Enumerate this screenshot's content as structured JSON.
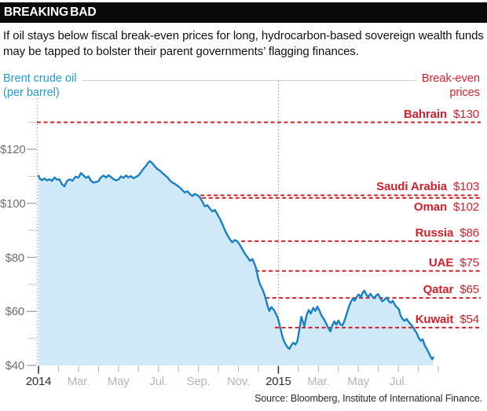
{
  "header": {
    "title": "BREAKING BAD"
  },
  "subtitle": "If oil stays below fiscal break-even prices for long, hydrocarbon-based sovereign wealth funds may be tapped to bolster their parent governments’ flagging finances.",
  "source": "Source: Bloomberg, Institute of International Finance.",
  "colors": {
    "line_blue": "#1a80c4",
    "fill_blue": "#cfe9f8",
    "label_blue": "#1e9ad6",
    "red": "#d2202b",
    "tick_gray": "#b5b5b9",
    "tick_dark": "#3b3b3f",
    "dotted_gray": "#9b9b9f"
  },
  "chart_data": {
    "type": "area",
    "left_title": [
      "Brent crude oil",
      "(per barrel)"
    ],
    "right_title": [
      "Break-even",
      "prices"
    ],
    "x_axis": {
      "unit": "months since Jan 2014",
      "ticks": [
        {
          "m": 0,
          "label": "2014",
          "year": true
        },
        {
          "m": 1
        },
        {
          "m": 2,
          "label": "Mar."
        },
        {
          "m": 3
        },
        {
          "m": 4,
          "label": "May"
        },
        {
          "m": 5
        },
        {
          "m": 6,
          "label": "Jul."
        },
        {
          "m": 7
        },
        {
          "m": 8,
          "label": "Sep."
        },
        {
          "m": 9
        },
        {
          "m": 10,
          "label": "Nov."
        },
        {
          "m": 11
        },
        {
          "m": 12,
          "label": "2015",
          "year": true
        },
        {
          "m": 13
        },
        {
          "m": 14,
          "label": "Mar."
        },
        {
          "m": 15
        },
        {
          "m": 16,
          "label": "May"
        },
        {
          "m": 17
        },
        {
          "m": 18,
          "label": "Jul."
        },
        {
          "m": 19
        },
        {
          "m": 20
        }
      ]
    },
    "y_axis": {
      "unit": "USD per barrel",
      "range": [
        40,
        135
      ],
      "major": [
        {
          "value": 120,
          "label": "$120"
        },
        {
          "value": 100,
          "label": "$100"
        },
        {
          "value": 80,
          "label": "$80"
        },
        {
          "value": 60,
          "label": "$60"
        },
        {
          "value": 40,
          "label": "$40"
        }
      ],
      "minor": [
        130,
        110,
        90,
        70,
        50
      ]
    },
    "breakeven": [
      {
        "country": "Bahrain",
        "price": 130,
        "price_label": "$130",
        "start_month": -0.08,
        "side": "above"
      },
      {
        "country": "Saudi Arabia",
        "price": 103,
        "price_label": "$103",
        "start_month": 8.1,
        "side": "above"
      },
      {
        "country": "Oman",
        "price": 102,
        "price_label": "$102",
        "start_month": 8.18,
        "side": "below"
      },
      {
        "country": "Russia",
        "price": 86,
        "price_label": "$86",
        "start_month": 10.14,
        "side": "above"
      },
      {
        "country": "UAE",
        "price": 75,
        "price_label": "$75",
        "start_month": 10.85,
        "side": "above"
      },
      {
        "country": "Qatar",
        "price": 65,
        "price_label": "$65",
        "start_month": 11.36,
        "side": "above"
      },
      {
        "country": "Kuwait",
        "price": 54,
        "price_label": "$54",
        "start_month": 11.83,
        "side": "above"
      }
    ],
    "series": [
      [
        0.0,
        110.2
      ],
      [
        0.08,
        109.0
      ],
      [
        0.18,
        108.6
      ],
      [
        0.3,
        109.2
      ],
      [
        0.42,
        108.5
      ],
      [
        0.55,
        108.9
      ],
      [
        0.68,
        108.3
      ],
      [
        0.8,
        109.6
      ],
      [
        0.92,
        108.8
      ],
      [
        1.05,
        108.9
      ],
      [
        1.18,
        107.0
      ],
      [
        1.3,
        106.3
      ],
      [
        1.42,
        108.2
      ],
      [
        1.55,
        108.9
      ],
      [
        1.7,
        108.4
      ],
      [
        1.85,
        109.9
      ],
      [
        2.0,
        109.5
      ],
      [
        2.12,
        111.2
      ],
      [
        2.25,
        110.3
      ],
      [
        2.38,
        109.4
      ],
      [
        2.5,
        110.0
      ],
      [
        2.62,
        108.4
      ],
      [
        2.75,
        107.7
      ],
      [
        2.88,
        107.9
      ],
      [
        3.0,
        108.2
      ],
      [
        3.12,
        109.6
      ],
      [
        3.25,
        110.3
      ],
      [
        3.38,
        109.6
      ],
      [
        3.5,
        110.4
      ],
      [
        3.62,
        109.8
      ],
      [
        3.75,
        109.0
      ],
      [
        3.88,
        108.5
      ],
      [
        4.0,
        108.8
      ],
      [
        4.12,
        110.0
      ],
      [
        4.25,
        109.4
      ],
      [
        4.38,
        110.3
      ],
      [
        4.5,
        109.6
      ],
      [
        4.62,
        110.1
      ],
      [
        4.75,
        109.3
      ],
      [
        4.88,
        109.8
      ],
      [
        5.0,
        110.3
      ],
      [
        5.12,
        111.4
      ],
      [
        5.25,
        112.8
      ],
      [
        5.38,
        113.9
      ],
      [
        5.5,
        115.2
      ],
      [
        5.58,
        115.6
      ],
      [
        5.7,
        114.8
      ],
      [
        5.82,
        113.7
      ],
      [
        5.95,
        112.7
      ],
      [
        6.08,
        112.1
      ],
      [
        6.2,
        111.2
      ],
      [
        6.32,
        110.5
      ],
      [
        6.45,
        109.6
      ],
      [
        6.58,
        108.4
      ],
      [
        6.7,
        107.7
      ],
      [
        6.82,
        107.2
      ],
      [
        6.95,
        106.5
      ],
      [
        7.08,
        105.8
      ],
      [
        7.2,
        104.9
      ],
      [
        7.32,
        104.0
      ],
      [
        7.45,
        104.5
      ],
      [
        7.58,
        103.4
      ],
      [
        7.7,
        102.7
      ],
      [
        7.82,
        103.5
      ],
      [
        7.95,
        103.0
      ],
      [
        8.08,
        102.2
      ],
      [
        8.2,
        100.6
      ],
      [
        8.32,
        98.9
      ],
      [
        8.45,
        99.3
      ],
      [
        8.58,
        98.0
      ],
      [
        8.7,
        97.0
      ],
      [
        8.82,
        97.6
      ],
      [
        8.95,
        95.9
      ],
      [
        9.08,
        94.2
      ],
      [
        9.2,
        92.3
      ],
      [
        9.32,
        90.1
      ],
      [
        9.45,
        88.2
      ],
      [
        9.58,
        86.6
      ],
      [
        9.7,
        85.6
      ],
      [
        9.82,
        86.4
      ],
      [
        9.95,
        85.9
      ],
      [
        10.08,
        84.6
      ],
      [
        10.2,
        83.0
      ],
      [
        10.32,
        81.4
      ],
      [
        10.45,
        80.1
      ],
      [
        10.58,
        78.7
      ],
      [
        10.7,
        79.4
      ],
      [
        10.82,
        77.3
      ],
      [
        10.9,
        75.6
      ],
      [
        10.97,
        72.8
      ],
      [
        11.08,
        70.0
      ],
      [
        11.2,
        68.3
      ],
      [
        11.32,
        65.9
      ],
      [
        11.45,
        62.3
      ],
      [
        11.55,
        60.2
      ],
      [
        11.65,
        61.6
      ],
      [
        11.78,
        60.5
      ],
      [
        11.9,
        58.8
      ],
      [
        12.0,
        56.9
      ],
      [
        12.1,
        53.8
      ],
      [
        12.22,
        50.2
      ],
      [
        12.32,
        48.4
      ],
      [
        12.45,
        46.8
      ],
      [
        12.55,
        46.1
      ],
      [
        12.65,
        47.5
      ],
      [
        12.75,
        48.4
      ],
      [
        12.85,
        47.7
      ],
      [
        12.95,
        49.0
      ],
      [
        13.05,
        53.2
      ],
      [
        13.15,
        58.0
      ],
      [
        13.22,
        56.3
      ],
      [
        13.3,
        54.6
      ],
      [
        13.42,
        58.8
      ],
      [
        13.52,
        60.5
      ],
      [
        13.62,
        59.2
      ],
      [
        13.75,
        61.3
      ],
      [
        13.85,
        60.2
      ],
      [
        13.95,
        61.8
      ],
      [
        14.05,
        60.3
      ],
      [
        14.15,
        58.6
      ],
      [
        14.28,
        57.1
      ],
      [
        14.4,
        55.4
      ],
      [
        14.5,
        53.8
      ],
      [
        14.6,
        52.6
      ],
      [
        14.7,
        54.9
      ],
      [
        14.8,
        56.3
      ],
      [
        14.9,
        55.1
      ],
      [
        15.0,
        56.6
      ],
      [
        15.1,
        55.2
      ],
      [
        15.2,
        54.8
      ],
      [
        15.3,
        56.4
      ],
      [
        15.42,
        59.1
      ],
      [
        15.52,
        61.6
      ],
      [
        15.62,
        63.4
      ],
      [
        15.72,
        64.8
      ],
      [
        15.82,
        64.0
      ],
      [
        15.92,
        65.4
      ],
      [
        16.02,
        66.3
      ],
      [
        16.12,
        65.3
      ],
      [
        16.22,
        66.9
      ],
      [
        16.3,
        67.7
      ],
      [
        16.4,
        66.2
      ],
      [
        16.5,
        65.3
      ],
      [
        16.6,
        66.5
      ],
      [
        16.7,
        65.6
      ],
      [
        16.8,
        64.9
      ],
      [
        16.9,
        66.0
      ],
      [
        17.0,
        66.4
      ],
      [
        17.1,
        64.8
      ],
      [
        17.2,
        63.7
      ],
      [
        17.32,
        64.5
      ],
      [
        17.42,
        65.1
      ],
      [
        17.52,
        63.8
      ],
      [
        17.62,
        63.2
      ],
      [
        17.72,
        63.9
      ],
      [
        17.82,
        62.5
      ],
      [
        17.92,
        61.6
      ],
      [
        18.02,
        60.9
      ],
      [
        18.12,
        58.3
      ],
      [
        18.22,
        57.1
      ],
      [
        18.32,
        56.5
      ],
      [
        18.42,
        57.2
      ],
      [
        18.52,
        56.1
      ],
      [
        18.62,
        55.2
      ],
      [
        18.72,
        54.4
      ],
      [
        18.82,
        53.1
      ],
      [
        18.92,
        52.0
      ],
      [
        19.02,
        50.2
      ],
      [
        19.12,
        49.1
      ],
      [
        19.22,
        49.7
      ],
      [
        19.32,
        47.4
      ],
      [
        19.42,
        46.2
      ],
      [
        19.52,
        44.7
      ],
      [
        19.62,
        43.1
      ],
      [
        19.7,
        42.3
      ],
      [
        19.75,
        43.0
      ]
    ]
  }
}
